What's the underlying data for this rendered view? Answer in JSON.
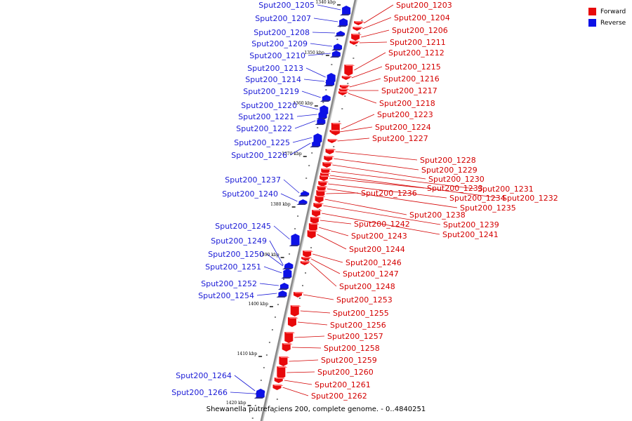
{
  "title": "Shewanella putrefaciens 200, complete genome. - 0..4840251",
  "colors": {
    "forward": "#e8090b",
    "reverse": "#0d11e6",
    "forward_label": "#d40000",
    "reverse_label": "#1a1ad6",
    "backbone": "#8a8a8a"
  },
  "legend": [
    {
      "label": "Forward",
      "strand": "forward"
    },
    {
      "label": "Reverse",
      "strand": "reverse"
    }
  ],
  "ticks": [
    "1340 kbp",
    "1350 kbp",
    "1360 kbp",
    "1370 kbp",
    "1380 kbp",
    "1390 kbp",
    "1400 kbp",
    "1410 kbp",
    "1420 kbp"
  ],
  "reverse_genes": [
    "Sput200_1205",
    "Sput200_1207",
    "Sput200_1208",
    "Sput200_1209",
    "Sput200_1210",
    "Sput200_1213",
    "Sput200_1214",
    "Sput200_1219",
    "Sput200_1220",
    "Sput200_1221",
    "Sput200_1222",
    "Sput200_1225",
    "Sput200_1226",
    "Sput200_1237",
    "Sput200_1240",
    "Sput200_1245",
    "Sput200_1249",
    "Sput200_1250",
    "Sput200_1251",
    "Sput200_1252",
    "Sput200_1254",
    "Sput200_1264",
    "Sput200_1266"
  ],
  "forward_genes": [
    "Sput200_1203",
    "Sput200_1204",
    "Sput200_1206",
    "Sput200_1211",
    "Sput200_1212",
    "Sput200_1215",
    "Sput200_1216",
    "Sput200_1217",
    "Sput200_1218",
    "Sput200_1223",
    "Sput200_1224",
    "Sput200_1227",
    "Sput200_1228",
    "Sput200_1229",
    "Sput200_1230",
    "Sput200_1231",
    "Sput200_1232",
    "Sput200_1233",
    "Sput200_1234",
    "Sput200_1235",
    "Sput200_1236",
    "Sput200_1238",
    "Sput200_1239",
    "Sput200_1241",
    "Sput200_1242",
    "Sput200_1243",
    "Sput200_1244",
    "Sput200_1246",
    "Sput200_1247",
    "Sput200_1248",
    "Sput200_1253",
    "Sput200_1255",
    "Sput200_1256",
    "Sput200_1257",
    "Sput200_1258",
    "Sput200_1259",
    "Sput200_1260",
    "Sput200_1261",
    "Sput200_1262"
  ]
}
